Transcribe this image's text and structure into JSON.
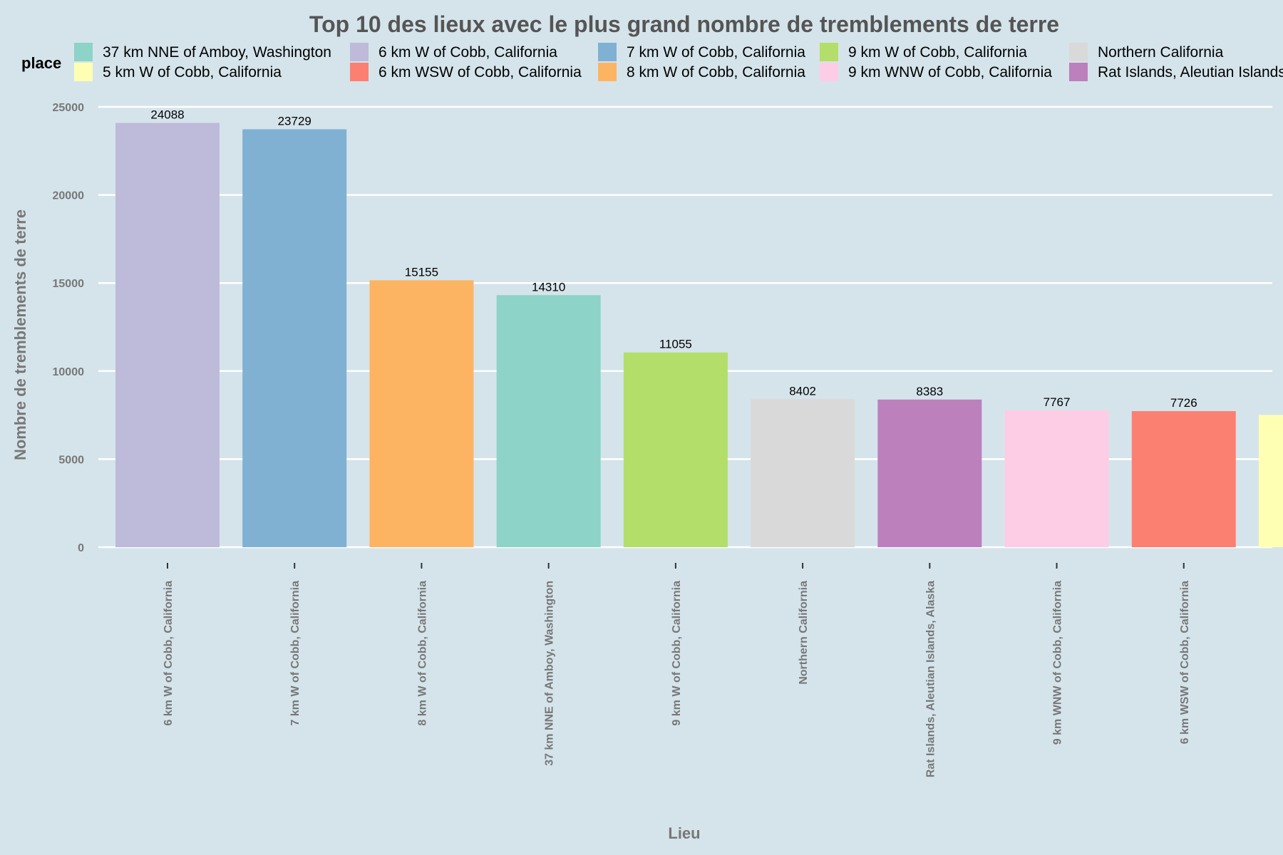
{
  "chart_data": {
    "type": "bar",
    "title": "Top 10 des lieux avec le plus grand nombre de tremblements de terre",
    "xlabel": "Lieu",
    "ylabel": "Nombre de tremblements de terre",
    "ylim": [
      0,
      25000
    ],
    "yticks": [
      0,
      5000,
      10000,
      15000,
      20000,
      25000
    ],
    "grid": true,
    "legend_position": "top",
    "legend": {
      "title": "place",
      "entries": [
        {
          "label": "37 km NNE of Amboy, Washington",
          "color": "#8dd3c7"
        },
        {
          "label": "6 km W of Cobb, California",
          "color": "#bebada"
        },
        {
          "label": "7 km W of Cobb, California",
          "color": "#80b1d3"
        },
        {
          "label": "9 km W of Cobb, California",
          "color": "#b3de69"
        },
        {
          "label": "Northern California",
          "color": "#d9d9d9"
        },
        {
          "label": "5 km W of Cobb, California",
          "color": "#ffffb3"
        },
        {
          "label": "6 km WSW of Cobb, California",
          "color": "#fb8072"
        },
        {
          "label": "8 km W of Cobb, California",
          "color": "#fdb462"
        },
        {
          "label": "9 km WNW of Cobb, California",
          "color": "#fccde5"
        },
        {
          "label": "Rat Islands, Aleutian Islands, Alaska",
          "color": "#bc80bd"
        }
      ]
    },
    "categories": [
      "6 km W of Cobb, California",
      "7 km W of Cobb, California",
      "8 km W of Cobb, California",
      "37 km NNE of Amboy, Washington",
      "9 km W of Cobb, California",
      "Northern California",
      "Rat Islands, Aleutian Islands, Alaska",
      "9 km WNW of Cobb, California",
      "6 km WSW of Cobb, California",
      "5 km W of Cobb, California"
    ],
    "values": [
      24088,
      23729,
      15155,
      14310,
      11055,
      8402,
      8383,
      7767,
      7726,
      7507
    ],
    "colors": [
      "#bebada",
      "#80b1d3",
      "#fdb462",
      "#8dd3c7",
      "#b3de69",
      "#d9d9d9",
      "#bc80bd",
      "#fccde5",
      "#fb8072",
      "#ffffb3"
    ]
  }
}
